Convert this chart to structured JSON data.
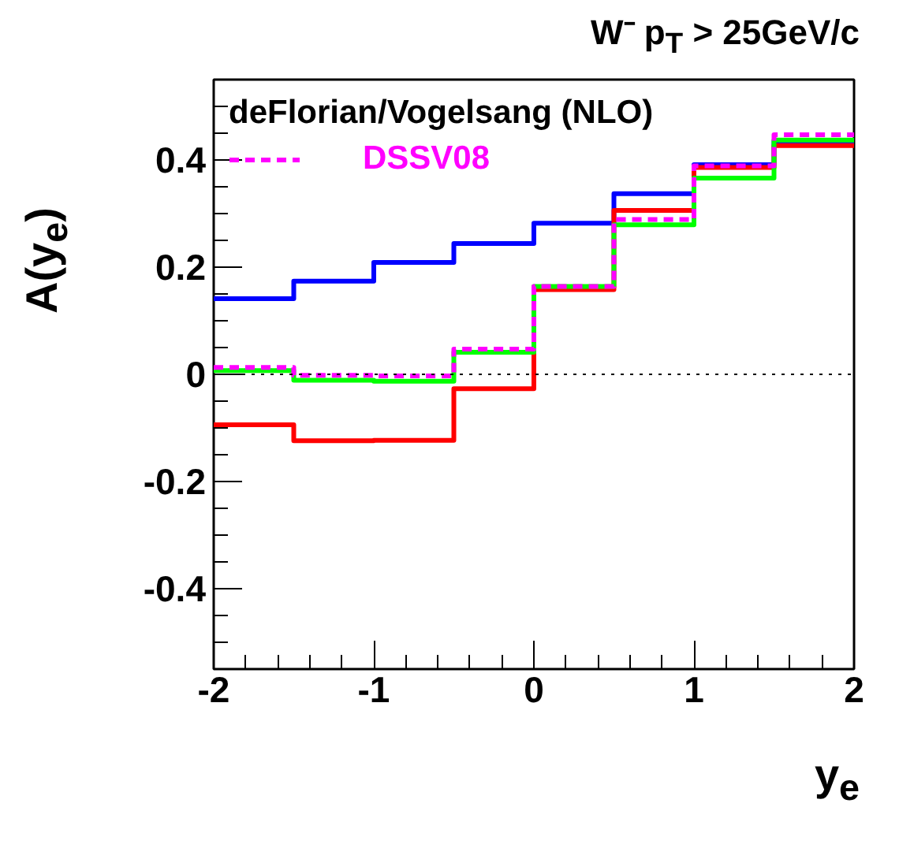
{
  "chart_data": {
    "type": "step",
    "title": "W⁻ p$_{T}$ > 25GeV/c",
    "xlabel": "y$_{e}$",
    "ylabel": "A(y$_{e}$)",
    "legend_title": "deFlorian/Vogelsang (NLO)",
    "legend": "top left",
    "grid": false,
    "x": [
      -2,
      -1.5,
      -1,
      -0.5,
      0,
      0.5,
      1,
      1.5,
      2
    ],
    "series": [
      {
        "color": "#0000ff",
        "values": [
          0.141,
          0.174,
          0.209,
          0.244,
          0.282,
          0.337,
          0.391,
          0.435,
          0.435
        ]
      },
      {
        "color": "#ff0000",
        "values": [
          -0.094,
          -0.124,
          -0.123,
          -0.027,
          0.158,
          0.306,
          0.386,
          0.427,
          0.427
        ]
      },
      {
        "color": "#00ff00",
        "values": [
          0.007,
          -0.011,
          -0.013,
          0.041,
          0.164,
          0.279,
          0.366,
          0.437,
          0.437
        ]
      },
      {
        "name": "DSSV08",
        "color": "#ff00ff",
        "line_style": "dashed",
        "values": [
          0.013,
          -0.002,
          -0.003,
          0.047,
          0.164,
          0.289,
          0.389,
          0.447,
          0.447
        ]
      }
    ],
    "ref_lines": [
      {
        "axis": "y",
        "value": 0,
        "label": null,
        "color": "#000000",
        "line_style": "dotted"
      }
    ],
    "xlim": [
      -2,
      2
    ],
    "ylim": [
      -0.55,
      0.55
    ],
    "xticks": [
      -2,
      -1,
      0,
      1,
      2
    ],
    "yticks": [
      {
        "value": -0.4,
        "label": "-0.4"
      },
      {
        "value": -0.2,
        "label": "-0.2"
      },
      0,
      {
        "value": 0.2,
        "label": "0.2"
      },
      {
        "value": 0.4,
        "label": "0.4"
      }
    ]
  }
}
